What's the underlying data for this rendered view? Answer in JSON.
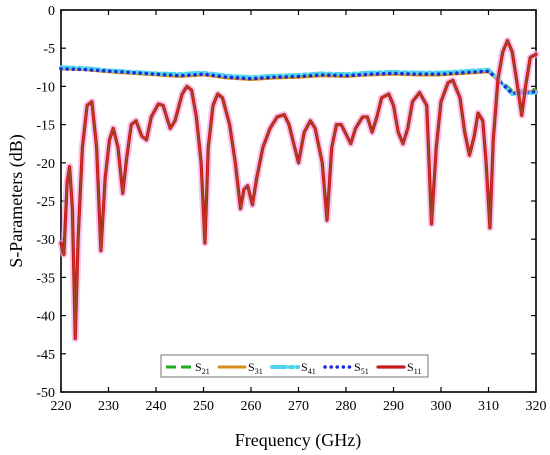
{
  "chart_data": {
    "type": "line",
    "xlabel": "Frequency (GHz)",
    "ylabel": "S-Parameters (dB)",
    "xlim": [
      220,
      320
    ],
    "ylim": [
      -50,
      0
    ],
    "x_ticks": [
      220,
      230,
      240,
      250,
      260,
      270,
      280,
      290,
      300,
      310,
      320
    ],
    "y_ticks": [
      0,
      -5,
      -10,
      -15,
      -20,
      -25,
      -30,
      -35,
      -40,
      -45,
      -50
    ],
    "grid": false,
    "legend_position": "bottom-center",
    "series": [
      {
        "name": "S21",
        "label_main": "S",
        "label_sub": "21",
        "color": "#22aa22",
        "style": "dashed",
        "points": [
          [
            220,
            -7.6
          ],
          [
            225,
            -7.7
          ],
          [
            230,
            -7.9
          ],
          [
            235,
            -8.1
          ],
          [
            240,
            -8.3
          ],
          [
            245,
            -8.5
          ],
          [
            250,
            -8.3
          ],
          [
            255,
            -8.7
          ],
          [
            260,
            -8.9
          ],
          [
            265,
            -8.7
          ],
          [
            270,
            -8.6
          ],
          [
            275,
            -8.4
          ],
          [
            280,
            -8.5
          ],
          [
            285,
            -8.3
          ],
          [
            290,
            -8.2
          ],
          [
            295,
            -8.3
          ],
          [
            300,
            -8.3
          ],
          [
            305,
            -8.1
          ],
          [
            310,
            -7.9
          ],
          [
            315,
            -10.6
          ],
          [
            320,
            -10.4
          ]
        ]
      },
      {
        "name": "S31",
        "label_main": "S",
        "label_sub": "31",
        "color": "#d98c1a",
        "style": "solid",
        "points": [
          [
            220,
            -7.7
          ],
          [
            225,
            -7.8
          ],
          [
            230,
            -8.1
          ],
          [
            235,
            -8.3
          ],
          [
            240,
            -8.5
          ],
          [
            245,
            -8.7
          ],
          [
            250,
            -8.5
          ],
          [
            255,
            -8.9
          ],
          [
            260,
            -9.1
          ],
          [
            265,
            -8.9
          ],
          [
            270,
            -8.8
          ],
          [
            275,
            -8.6
          ],
          [
            280,
            -8.7
          ],
          [
            285,
            -8.5
          ],
          [
            290,
            -8.4
          ],
          [
            295,
            -8.5
          ],
          [
            300,
            -8.5
          ],
          [
            305,
            -8.3
          ],
          [
            310,
            -8.1
          ],
          [
            315,
            -10.8
          ],
          [
            320,
            -10.6
          ]
        ]
      },
      {
        "name": "S41",
        "label_main": "S",
        "label_sub": "41",
        "color": "#4fd4ee",
        "style": "dashdot",
        "points": [
          [
            220,
            -7.5
          ],
          [
            225,
            -7.6
          ],
          [
            230,
            -7.9
          ],
          [
            235,
            -8.1
          ],
          [
            240,
            -8.3
          ],
          [
            245,
            -8.4
          ],
          [
            250,
            -8.2
          ],
          [
            255,
            -8.6
          ],
          [
            260,
            -8.8
          ],
          [
            265,
            -8.6
          ],
          [
            270,
            -8.5
          ],
          [
            275,
            -8.3
          ],
          [
            280,
            -8.4
          ],
          [
            285,
            -8.2
          ],
          [
            290,
            -8.1
          ],
          [
            295,
            -8.2
          ],
          [
            300,
            -8.2
          ],
          [
            305,
            -8.0
          ],
          [
            310,
            -7.8
          ],
          [
            315,
            -11.0
          ],
          [
            320,
            -10.8
          ]
        ]
      },
      {
        "name": "S51",
        "label_main": "S",
        "label_sub": "51",
        "color": "#1a2ad6",
        "style": "dotted",
        "points": [
          [
            220,
            -7.7
          ],
          [
            225,
            -7.8
          ],
          [
            230,
            -8.0
          ],
          [
            235,
            -8.2
          ],
          [
            240,
            -8.4
          ],
          [
            245,
            -8.6
          ],
          [
            250,
            -8.4
          ],
          [
            255,
            -8.8
          ],
          [
            260,
            -9.0
          ],
          [
            265,
            -8.8
          ],
          [
            270,
            -8.7
          ],
          [
            275,
            -8.5
          ],
          [
            280,
            -8.6
          ],
          [
            285,
            -8.4
          ],
          [
            290,
            -8.3
          ],
          [
            295,
            -8.4
          ],
          [
            300,
            -8.4
          ],
          [
            305,
            -8.2
          ],
          [
            310,
            -8.0
          ],
          [
            315,
            -10.9
          ],
          [
            320,
            -10.7
          ]
        ]
      },
      {
        "name": "S11",
        "label_main": "S",
        "label_sub": "11",
        "color": "#c81a1a",
        "style": "solid",
        "points": [
          [
            220,
            -30.5
          ],
          [
            220.6,
            -32.0
          ],
          [
            221.3,
            -22.5
          ],
          [
            221.8,
            -20.5
          ],
          [
            222.4,
            -26.0
          ],
          [
            223.0,
            -43.0
          ],
          [
            223.6,
            -30.0
          ],
          [
            224.5,
            -18.0
          ],
          [
            225.5,
            -12.5
          ],
          [
            226.5,
            -12.0
          ],
          [
            227.5,
            -18.0
          ],
          [
            228.4,
            -31.5
          ],
          [
            229.3,
            -22.0
          ],
          [
            230.2,
            -17.0
          ],
          [
            231.0,
            -15.5
          ],
          [
            232.0,
            -18.0
          ],
          [
            233.0,
            -24.0
          ],
          [
            233.8,
            -19.5
          ],
          [
            234.8,
            -15.0
          ],
          [
            235.8,
            -14.5
          ],
          [
            237.0,
            -16.5
          ],
          [
            238.0,
            -17.0
          ],
          [
            239.0,
            -14.0
          ],
          [
            240.5,
            -12.3
          ],
          [
            241.5,
            -12.5
          ],
          [
            243.0,
            -15.5
          ],
          [
            244.0,
            -14.5
          ],
          [
            245.5,
            -11.0
          ],
          [
            246.5,
            -10.0
          ],
          [
            247.5,
            -10.5
          ],
          [
            248.5,
            -14.0
          ],
          [
            249.5,
            -20.0
          ],
          [
            250.3,
            -30.5
          ],
          [
            251.0,
            -18.0
          ],
          [
            252.0,
            -12.5
          ],
          [
            253.0,
            -11.0
          ],
          [
            254.0,
            -11.5
          ],
          [
            255.5,
            -15.0
          ],
          [
            256.7,
            -20.0
          ],
          [
            257.8,
            -26.0
          ],
          [
            258.5,
            -23.5
          ],
          [
            259.3,
            -23.0
          ],
          [
            260.3,
            -25.5
          ],
          [
            261.2,
            -22.0
          ],
          [
            262.5,
            -18.0
          ],
          [
            264.0,
            -15.5
          ],
          [
            265.5,
            -14.0
          ],
          [
            267.0,
            -13.7
          ],
          [
            268.0,
            -15.0
          ],
          [
            269.0,
            -17.5
          ],
          [
            270.0,
            -20.0
          ],
          [
            271.2,
            -16.0
          ],
          [
            272.5,
            -14.5
          ],
          [
            273.5,
            -15.5
          ],
          [
            275.0,
            -20.0
          ],
          [
            276.0,
            -27.5
          ],
          [
            277.0,
            -18.0
          ],
          [
            278.0,
            -15.0
          ],
          [
            279.0,
            -15.0
          ],
          [
            280.2,
            -16.5
          ],
          [
            281.0,
            -17.5
          ],
          [
            282.0,
            -15.5
          ],
          [
            283.5,
            -14.0
          ],
          [
            284.5,
            -14.0
          ],
          [
            285.5,
            -16.0
          ],
          [
            286.5,
            -14.0
          ],
          [
            287.5,
            -11.5
          ],
          [
            289.0,
            -11.0
          ],
          [
            290.0,
            -12.5
          ],
          [
            291.0,
            -16.0
          ],
          [
            292.0,
            -17.5
          ],
          [
            293.0,
            -15.5
          ],
          [
            294.0,
            -12.0
          ],
          [
            295.5,
            -10.8
          ],
          [
            297.0,
            -12.5
          ],
          [
            298.0,
            -28.0
          ],
          [
            299.0,
            -18.0
          ],
          [
            300.0,
            -12.0
          ],
          [
            301.5,
            -9.5
          ],
          [
            302.5,
            -9.2
          ],
          [
            304.0,
            -11.5
          ],
          [
            305.0,
            -16.0
          ],
          [
            306.0,
            -19.0
          ],
          [
            307.0,
            -16.5
          ],
          [
            307.8,
            -13.5
          ],
          [
            308.8,
            -14.5
          ],
          [
            309.5,
            -20.0
          ],
          [
            310.3,
            -28.5
          ],
          [
            311.0,
            -17.0
          ],
          [
            312.0,
            -9.0
          ],
          [
            313.0,
            -5.5
          ],
          [
            314.0,
            -4.0
          ],
          [
            315.0,
            -5.5
          ],
          [
            316.0,
            -9.5
          ],
          [
            317.0,
            -13.8
          ],
          [
            317.8,
            -10.0
          ],
          [
            318.8,
            -6.2
          ],
          [
            320.0,
            -5.8
          ]
        ]
      }
    ]
  }
}
